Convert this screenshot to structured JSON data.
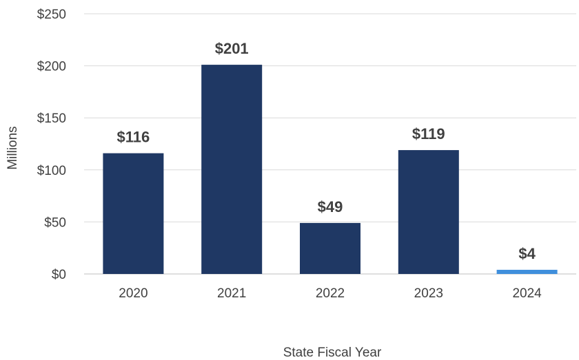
{
  "chart_data": {
    "type": "bar",
    "categories": [
      "2020",
      "2021",
      "2022",
      "2023",
      "2024"
    ],
    "values": [
      116,
      201,
      49,
      119,
      4
    ],
    "data_labels": [
      "$116",
      "$201",
      "$49",
      "$119",
      "$4"
    ],
    "bar_colors": [
      "#1f3864",
      "#1f3864",
      "#1f3864",
      "#1f3864",
      "#3f8fdc"
    ],
    "xlabel": "State Fiscal Year",
    "ylabel": "Millions",
    "ylim": [
      0,
      250
    ],
    "yticks": [
      0,
      50,
      100,
      150,
      200,
      250
    ],
    "ytick_labels": [
      "$0",
      "$50",
      "$100",
      "$150",
      "$200",
      "$250"
    ],
    "grid": true
  }
}
